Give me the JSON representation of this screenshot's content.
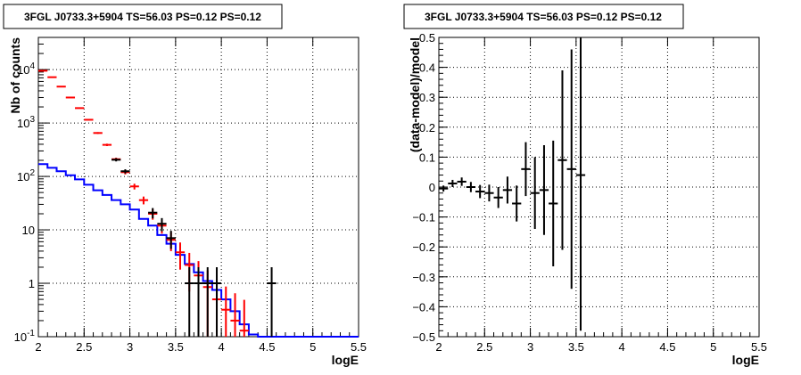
{
  "chart_data": [
    {
      "type": "line",
      "title": "3FGL J0733.3+5904 TS=56.03 PS=0.12 PS=0.12",
      "xlabel": "logE",
      "ylabel": "Nb of counts",
      "xlim": [
        2,
        5.5
      ],
      "ylim": [
        0.1,
        40000
      ],
      "yscale": "log",
      "grid": true,
      "x_ticks": [
        "2",
        "2.5",
        "3",
        "3.5",
        "4",
        "4.5",
        "5",
        "5.5"
      ],
      "y_ticks": [
        "10^{-1}",
        "1",
        "10",
        "10^{2}",
        "10^{3}",
        "10^{4}"
      ],
      "colors": {
        "model_total": "#ff0000",
        "model_source": "#0000ff",
        "data": "#000000"
      },
      "series": [
        {
          "name": "",
          "kind": "step",
          "color": "#0000ff",
          "bin_edges": [
            2.0,
            2.1,
            2.2,
            2.3,
            2.4,
            2.5,
            2.6,
            2.7,
            2.8,
            2.9,
            3.0,
            3.1,
            3.2,
            3.3,
            3.4,
            3.5,
            3.6,
            3.7,
            3.8,
            3.9,
            4.0,
            4.1,
            4.2,
            4.3,
            4.4,
            4.5,
            5.5
          ],
          "values": [
            170,
            145,
            125,
            105,
            88,
            70,
            55,
            45,
            36,
            30,
            24,
            16,
            12,
            8,
            5.5,
            3.4,
            2.3,
            1.6,
            1.1,
            0.75,
            0.5,
            0.3,
            0.17,
            0.11,
            0.1,
            0.1
          ]
        },
        {
          "name": "",
          "kind": "errorbar",
          "color": "#ff0000",
          "x": [
            2.05,
            2.15,
            2.25,
            2.35,
            2.45,
            2.55,
            2.65,
            2.75,
            2.85,
            2.95,
            3.05,
            3.15,
            3.25,
            3.35,
            3.45,
            3.55,
            3.65,
            3.75,
            3.85,
            3.95,
            4.05,
            4.15,
            4.25
          ],
          "y": [
            9500,
            7200,
            4800,
            3000,
            1900,
            1150,
            650,
            390,
            210,
            120,
            65,
            36,
            20,
            12,
            6.5,
            3.8,
            2.2,
            1.4,
            0.85,
            0.5,
            0.32,
            0.2,
            0.13
          ],
          "y_err": [
            97,
            85,
            69,
            55,
            44,
            34,
            25,
            20,
            14,
            11,
            8,
            6,
            4.5,
            3.5,
            2.5,
            2,
            1.5,
            1.2,
            0.9,
            0.7,
            0.55,
            0.45,
            0.36
          ]
        },
        {
          "name": "",
          "kind": "errorbar",
          "color": "#000000",
          "x": [
            2.85,
            2.95,
            3.25,
            3.35,
            3.45,
            3.65,
            3.75,
            3.85,
            3.95,
            4.55
          ],
          "y": [
            205,
            125,
            21,
            13,
            7,
            1,
            1,
            1,
            1,
            1
          ],
          "y_err": [
            14,
            11,
            4.6,
            3.6,
            2.6,
            1,
            1,
            1,
            1,
            1
          ]
        }
      ]
    },
    {
      "type": "scatter",
      "title": "3FGL J0733.3+5904 TS=56.03 PS=0.12 PS=0.12",
      "xlabel": "logE",
      "ylabel": "(data-model)/model",
      "xlim": [
        2,
        5.5
      ],
      "ylim": [
        -0.5,
        0.5
      ],
      "grid": true,
      "x_ticks": [
        "2",
        "2.5",
        "3",
        "3.5",
        "4",
        "4.5",
        "5",
        "5.5"
      ],
      "y_ticks": [
        "−0.5",
        "−0.4",
        "−0.3",
        "−0.2",
        "−0.1",
        "0",
        "0.1",
        "0.2",
        "0.3",
        "0.4",
        "0.5"
      ],
      "colors": {
        "data": "#000000"
      },
      "series": [
        {
          "name": "",
          "kind": "errorbar",
          "color": "#000000",
          "x": [
            2.05,
            2.15,
            2.25,
            2.35,
            2.45,
            2.55,
            2.65,
            2.75,
            2.85,
            2.95,
            3.05,
            3.15,
            3.25,
            3.35,
            3.45,
            3.55
          ],
          "y": [
            -0.005,
            0.012,
            0.018,
            0.0,
            -0.015,
            -0.02,
            -0.035,
            -0.01,
            -0.055,
            0.06,
            -0.02,
            -0.01,
            -0.055,
            0.09,
            0.06,
            0.04
          ],
          "y_err": [
            0.01,
            0.012,
            0.014,
            0.017,
            0.022,
            0.028,
            0.035,
            0.045,
            0.06,
            0.09,
            0.12,
            0.15,
            0.21,
            0.3,
            0.4,
            0.52
          ]
        }
      ]
    }
  ]
}
